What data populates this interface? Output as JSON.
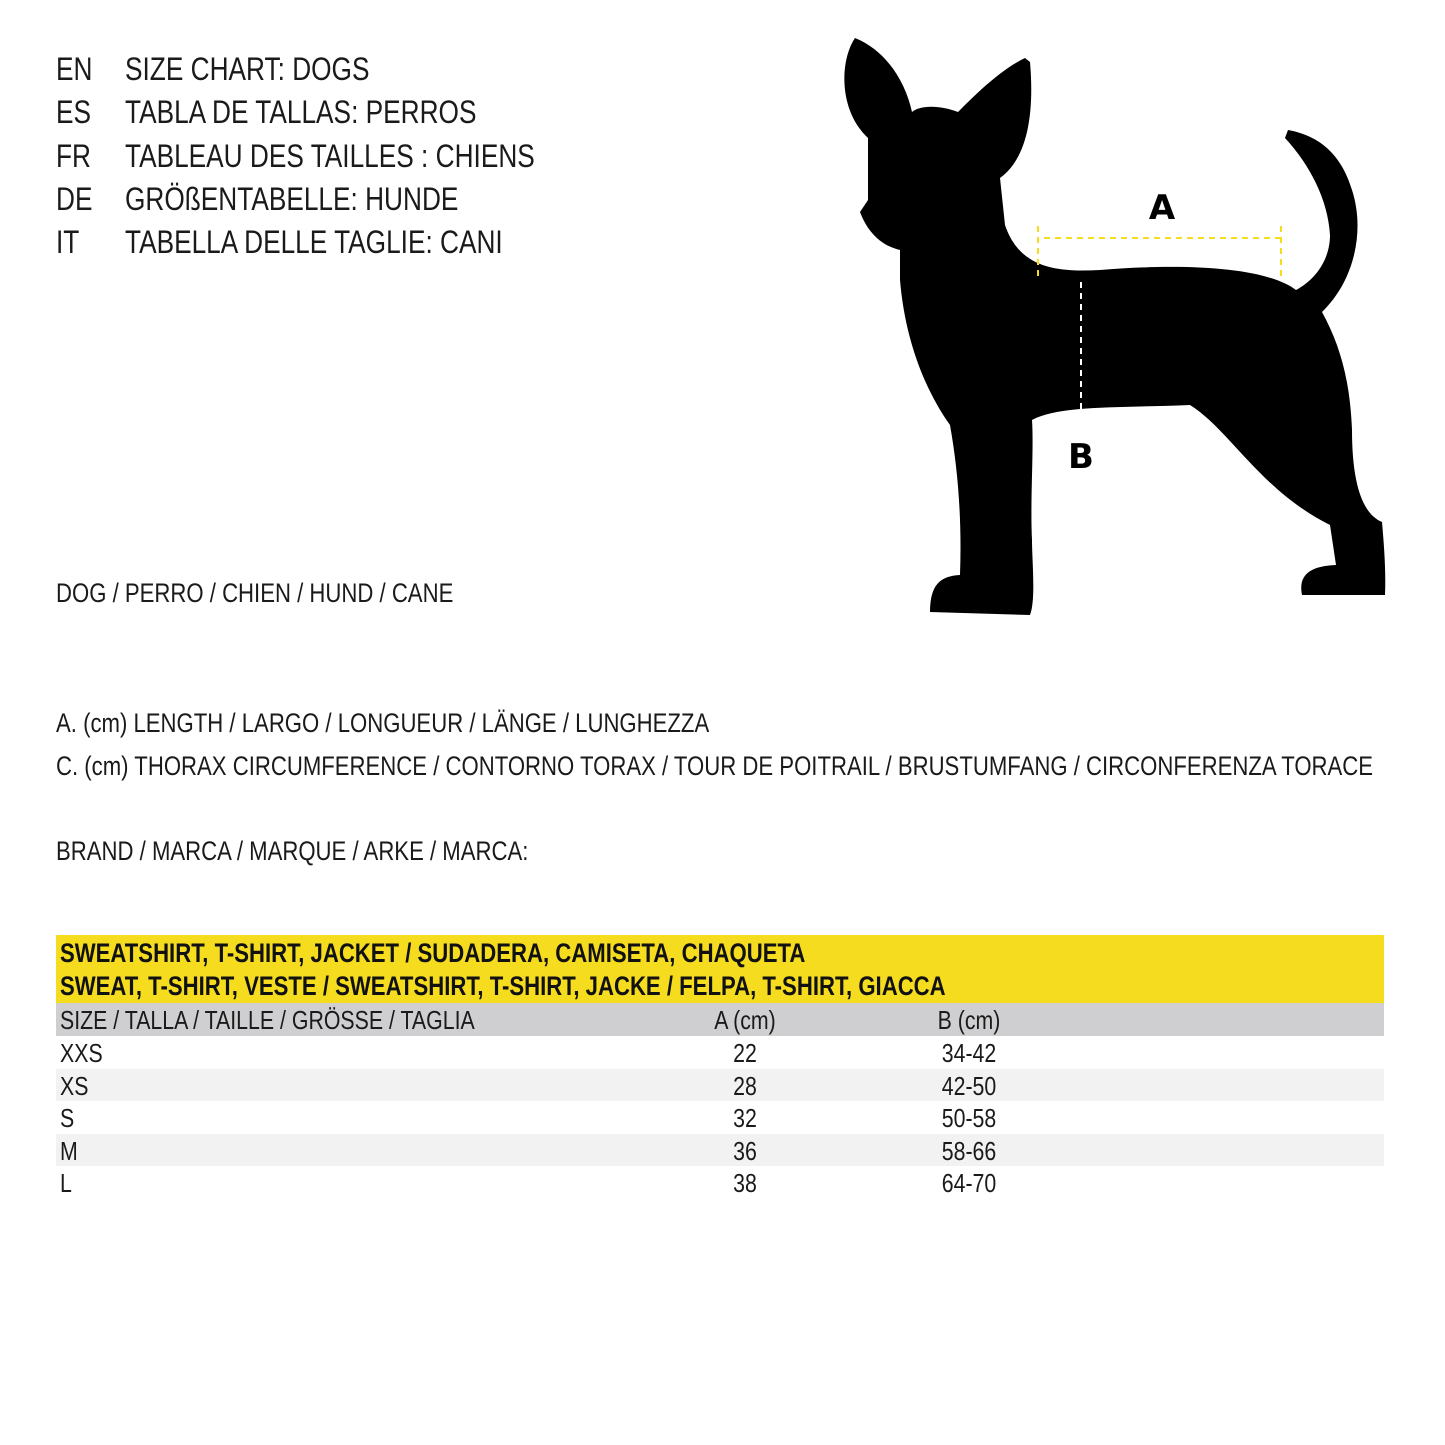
{
  "titles": [
    {
      "code": "EN",
      "text": "SIZE CHART: DOGS"
    },
    {
      "code": "ES",
      "text": "TABLA DE TALLAS: PERROS"
    },
    {
      "code": "FR",
      "text": "TABLEAU DES TAILLES : CHIENS"
    },
    {
      "code": "DE",
      "text": "GRÖßENTABELLE: HUNDE"
    },
    {
      "code": "IT",
      "text": "TABELLA DELLE TAGLIE: CANI"
    }
  ],
  "animal": "DOG / PERRO / CHIEN / HUND / CANE",
  "legend": {
    "a": "A. (cm) LENGTH / LARGO / LONGUEUR / LÄNGE / LUNGHEZZA",
    "c": "C. (cm) THORAX CIRCUMFERENCE / CONTORNO TORAX / TOUR DE POITRAIL / BRUSTUMFANG / CIRCONFERENZA TORACE"
  },
  "brand_label": "BRAND / MARCA / MARQUE / ARKE / MARCA:",
  "diagram": {
    "label_a": "A",
    "label_b": "B",
    "accent": "#f5dc1f"
  },
  "table": {
    "title_line1": "SWEATSHIRT, T-SHIRT, JACKET / SUDADERA, CAMISETA, CHAQUETA",
    "title_line2": "SWEAT, T-SHIRT, VESTE / SWEATSHIRT, T-SHIRT, JACKE / FELPA, T-SHIRT, GIACCA",
    "headers": [
      "SIZE / TALLA / TAILLE / GRÖSSE / TAGLIA",
      "A (cm)",
      "B (cm)"
    ],
    "rows": [
      [
        "XXS",
        "22",
        "34-42"
      ],
      [
        "XS",
        "28",
        "42-50"
      ],
      [
        "S",
        "32",
        "50-58"
      ],
      [
        "M",
        "36",
        "58-66"
      ],
      [
        "L",
        "38",
        "64-70"
      ]
    ]
  }
}
